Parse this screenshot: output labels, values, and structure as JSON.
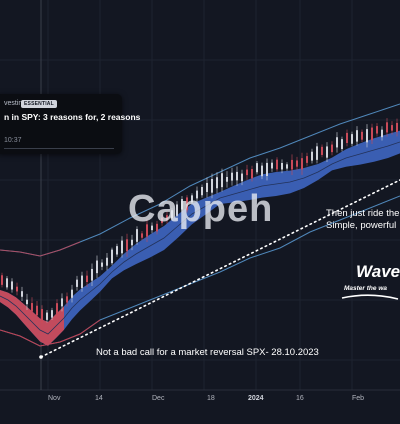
{
  "popup": {
    "source": "vesting",
    "badge": "ESSENTIAL",
    "title": "n in SPY: 3 reasons for, 2 reasons",
    "time": "10:37"
  },
  "watermark": "Cappeh",
  "annotations": {
    "ride_1": "Then just ride the",
    "ride_2": "Simple, powerful",
    "reversal": "Not a bad call for a market reversal SPX- 28.10.2023"
  },
  "logo": {
    "text": "Waves",
    "tagline": "Master the wa"
  },
  "colors": {
    "background": "#131722",
    "band_bull": "#3f66c2",
    "band_bear": "#c94a59",
    "envelope": "#5b9bd5",
    "envelope_low": "#c0404f",
    "candle_up": "#d1d4dc",
    "trendline": "#ffffff"
  },
  "chart_data": {
    "type": "line",
    "title": "",
    "xlabel": "",
    "ylabel": "",
    "x_ticks": [
      "Nov",
      "14",
      "Dec",
      "18",
      "2024",
      "16",
      "Feb"
    ],
    "x_ticks_bold": [
      "2024"
    ],
    "grid": true,
    "legend": "none",
    "y_axis_visible": false,
    "series": [
      {
        "name": "",
        "points": [
          [
            0,
            296
          ],
          [
            8,
            300
          ],
          [
            16,
            306
          ],
          [
            24,
            314
          ],
          [
            32,
            322
          ],
          [
            40,
            330
          ],
          [
            48,
            334
          ],
          [
            56,
            326
          ],
          [
            64,
            318
          ],
          [
            72,
            308
          ],
          [
            80,
            300
          ],
          [
            90,
            292
          ],
          [
            100,
            284
          ],
          [
            112,
            272
          ],
          [
            124,
            262
          ],
          [
            136,
            254
          ],
          [
            150,
            246
          ],
          [
            164,
            238
          ],
          [
            178,
            226
          ],
          [
            192,
            214
          ],
          [
            206,
            206
          ],
          [
            220,
            198
          ],
          [
            234,
            194
          ],
          [
            248,
            190
          ],
          [
            262,
            186
          ],
          [
            276,
            184
          ],
          [
            290,
            182
          ],
          [
            304,
            178
          ],
          [
            318,
            172
          ],
          [
            332,
            164
          ],
          [
            346,
            158
          ],
          [
            360,
            154
          ],
          [
            374,
            150
          ],
          [
            388,
            146
          ],
          [
            400,
            142
          ]
        ]
      }
    ],
    "envelope_upper": [
      [
        0,
        250
      ],
      [
        20,
        252
      ],
      [
        40,
        256
      ],
      [
        60,
        250
      ],
      [
        80,
        242
      ],
      [
        100,
        234
      ],
      [
        130,
        218
      ],
      [
        160,
        204
      ],
      [
        190,
        186
      ],
      [
        220,
        172
      ],
      [
        250,
        158
      ],
      [
        280,
        148
      ],
      [
        310,
        136
      ],
      [
        340,
        124
      ],
      [
        370,
        114
      ],
      [
        400,
        104
      ]
    ],
    "envelope_lower": [
      [
        0,
        330
      ],
      [
        20,
        336
      ],
      [
        40,
        346
      ],
      [
        60,
        342
      ],
      [
        80,
        334
      ],
      [
        100,
        320
      ],
      [
        130,
        308
      ],
      [
        160,
        296
      ],
      [
        190,
        284
      ],
      [
        220,
        272
      ],
      [
        250,
        258
      ],
      [
        280,
        248
      ],
      [
        310,
        232
      ],
      [
        340,
        220
      ],
      [
        370,
        208
      ],
      [
        400,
        196
      ]
    ],
    "trendline": [
      [
        41,
        357
      ],
      [
        400,
        180
      ]
    ]
  }
}
